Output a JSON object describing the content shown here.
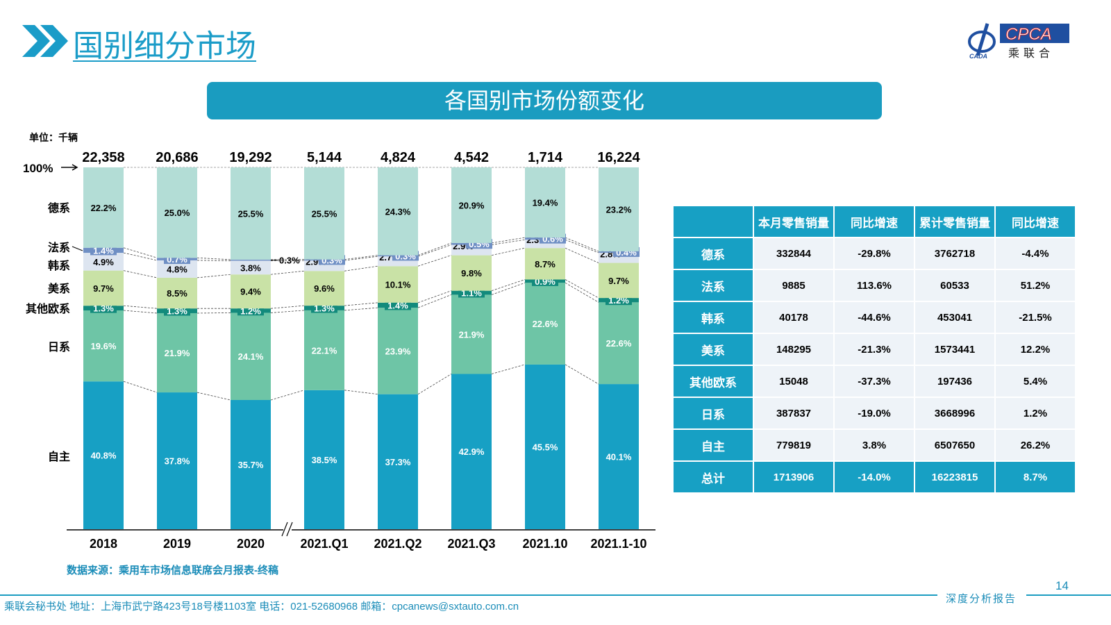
{
  "header": {
    "title": "国别细分市场",
    "banner": "各国别市场份额变化",
    "logo_text": "CPCA 乘联会 CADA"
  },
  "unit": "单位：千辆",
  "colors": {
    "自主": "#17a0c4",
    "日系": "#6ec5a6",
    "其他欧系": "#128a7c",
    "美系": "#c9e2a6",
    "韩系": "#dde5f0",
    "法系": "#6f8fc4",
    "德系": "#b3ddd6"
  },
  "chart_data": {
    "type": "bar",
    "stacked": true,
    "normalized": true,
    "categories": [
      "2018",
      "2019",
      "2020",
      "2021.Q1",
      "2021.Q2",
      "2021.Q3",
      "2021.10",
      "2021.1-10"
    ],
    "totals": [
      "22,358",
      "20,686",
      "19,292",
      "5,144",
      "4,824",
      "4,542",
      "1,714",
      "16,224"
    ],
    "top_label": "100%",
    "series": [
      {
        "name": "自主",
        "values": [
          40.8,
          37.8,
          35.7,
          38.5,
          37.3,
          42.9,
          45.5,
          40.1
        ]
      },
      {
        "name": "日系",
        "values": [
          19.6,
          21.9,
          24.1,
          22.1,
          23.9,
          21.9,
          22.6,
          22.6
        ]
      },
      {
        "name": "其他欧系",
        "values": [
          1.3,
          1.3,
          1.2,
          1.3,
          1.4,
          1.1,
          0.9,
          1.2
        ]
      },
      {
        "name": "美系",
        "values": [
          9.7,
          8.5,
          9.4,
          9.6,
          10.1,
          9.8,
          8.7,
          9.7
        ]
      },
      {
        "name": "韩系",
        "values": [
          4.9,
          4.8,
          3.8,
          2.9,
          2.7,
          2.9,
          2.3,
          2.8
        ]
      },
      {
        "name": "法系",
        "values": [
          1.4,
          0.7,
          0.3,
          0.3,
          0.3,
          0.5,
          0.6,
          0.4
        ]
      },
      {
        "name": "德系",
        "values": [
          22.2,
          25.0,
          25.5,
          25.5,
          24.3,
          20.9,
          19.4,
          23.2
        ]
      }
    ],
    "ylim": [
      0,
      100
    ],
    "axis_break_after": "2020"
  },
  "table": {
    "headers": [
      "",
      "本月零售销量",
      "同比增速",
      "累计零售销量",
      "同比增速"
    ],
    "rows": [
      [
        "德系",
        "332844",
        "-29.8%",
        "3762718",
        "-4.4%"
      ],
      [
        "法系",
        "9885",
        "113.6%",
        "60533",
        "51.2%"
      ],
      [
        "韩系",
        "40178",
        "-44.6%",
        "453041",
        "-21.5%"
      ],
      [
        "美系",
        "148295",
        "-21.3%",
        "1573441",
        "12.2%"
      ],
      [
        "其他欧系",
        "15048",
        "-37.3%",
        "197436",
        "5.4%"
      ],
      [
        "日系",
        "387837",
        "-19.0%",
        "3668996",
        "1.2%"
      ],
      [
        "自主",
        "779819",
        "3.8%",
        "6507650",
        "26.2%"
      ]
    ],
    "total": [
      "总计",
      "1713906",
      "-14.0%",
      "16223815",
      "8.7%"
    ]
  },
  "source": "数据来源：乘用车市场信息联席会月报表-终稿",
  "page": "14",
  "footer": {
    "left": "乘联会秘书处   地址：上海市武宁路423号18号楼1103室  电话：021-52680968   邮箱：cpcanews@sxtauto.com.cn",
    "right": "深度分析报告"
  }
}
